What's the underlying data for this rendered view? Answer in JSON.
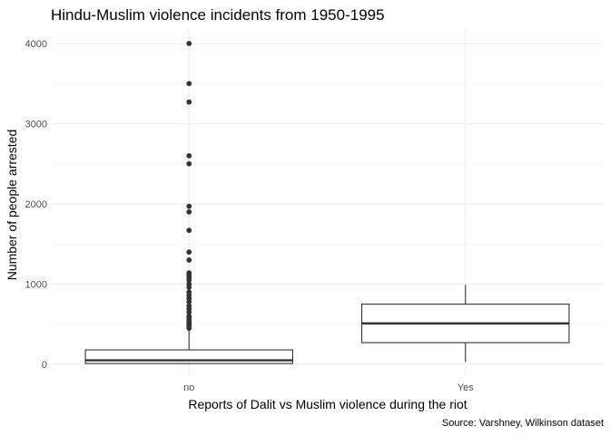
{
  "chart_data": {
    "type": "boxplot",
    "title": "Hindu-Muslim violence incidents from 1950-1995",
    "xlabel": "Reports of Dalit vs Muslim violence during the riot",
    "ylabel": "Number of people arrested",
    "caption": "Source: Varshney, Wilkinson dataset",
    "categories": [
      "no",
      "Yes"
    ],
    "ylim": [
      -120,
      4200
    ],
    "yticks": [
      0,
      1000,
      2000,
      3000,
      4000
    ],
    "ytick_labels": [
      "0",
      "1000",
      "2000",
      "3000",
      "4000"
    ],
    "grid": true,
    "legend": "none",
    "boxes": [
      {
        "category": "no",
        "lower_whisker": 0,
        "q1": 10,
        "median": 50,
        "q3": 180,
        "upper_whisker": 430,
        "outliers": [
          450,
          470,
          490,
          510,
          530,
          560,
          590,
          600,
          650,
          690,
          730,
          780,
          820,
          860,
          900,
          960,
          1000,
          1050,
          1080,
          1110,
          1140,
          1300,
          1400,
          1670,
          1900,
          1970,
          2500,
          2600,
          3270,
          3500,
          4000
        ]
      },
      {
        "category": "Yes",
        "lower_whisker": 30,
        "q1": 270,
        "median": 510,
        "q3": 750,
        "upper_whisker": 990,
        "outliers": []
      }
    ],
    "colors": {
      "box_stroke": "#333333",
      "box_fill": "#ffffff",
      "outlier": "#333333",
      "grid_major": "#ebebeb",
      "grid_minor": "#f5f5f5"
    }
  }
}
